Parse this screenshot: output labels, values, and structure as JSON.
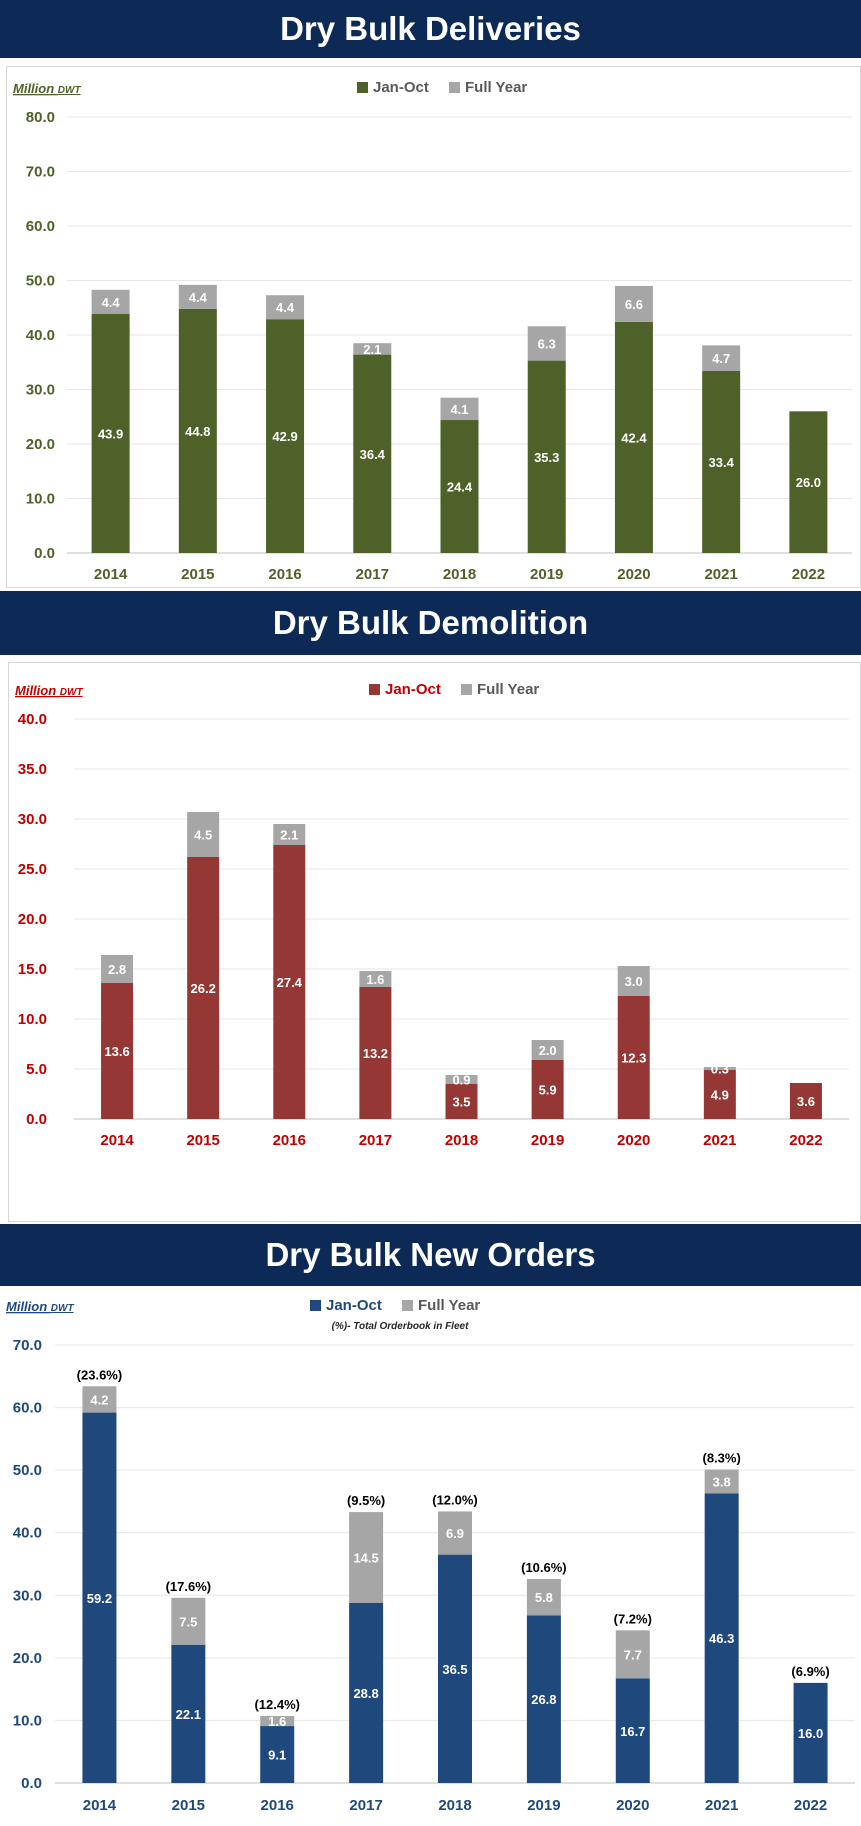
{
  "chart_data": [
    {
      "type": "bar",
      "stacked": true,
      "title": "Dry Bulk Deliveries",
      "unit_main": "Million",
      "unit_sub": "DWT",
      "legend_position": "top-center",
      "categories": [
        "2014",
        "2015",
        "2016",
        "2017",
        "2018",
        "2019",
        "2020",
        "2021",
        "2022"
      ],
      "series": [
        {
          "name": "Jan-Oct",
          "values": [
            43.9,
            44.8,
            42.9,
            36.4,
            24.4,
            35.3,
            42.4,
            33.4,
            26.0
          ]
        },
        {
          "name": "Full Year",
          "values": [
            4.4,
            4.4,
            4.4,
            2.1,
            4.1,
            6.3,
            6.6,
            4.7,
            null
          ]
        }
      ],
      "ylim": [
        0,
        80
      ],
      "yticks": [
        "0.0",
        "10.0",
        "20.0",
        "30.0",
        "40.0",
        "50.0",
        "60.0",
        "70.0",
        "80.0"
      ],
      "colors": {
        "primary": "#4e6128",
        "secondary": "#a6a6a6",
        "axis_text": "#4e6128"
      },
      "grid": true
    },
    {
      "type": "bar",
      "stacked": true,
      "title": "Dry Bulk Demolition",
      "unit_main": "Million",
      "unit_sub": "DWT",
      "legend_position": "top-center",
      "categories": [
        "2014",
        "2015",
        "2016",
        "2017",
        "2018",
        "2019",
        "2020",
        "2021",
        "2022"
      ],
      "series": [
        {
          "name": "Jan-Oct",
          "values": [
            13.6,
            26.2,
            27.4,
            13.2,
            3.5,
            5.9,
            12.3,
            4.9,
            3.6
          ]
        },
        {
          "name": "Full Year",
          "values": [
            2.8,
            4.5,
            2.1,
            1.6,
            0.9,
            2.0,
            3.0,
            0.3,
            null
          ]
        }
      ],
      "ylim": [
        0,
        40
      ],
      "yticks": [
        "0.0",
        "5.0",
        "10.0",
        "15.0",
        "20.0",
        "25.0",
        "30.0",
        "35.0",
        "40.0"
      ],
      "colors": {
        "primary": "#953735",
        "secondary": "#a6a6a6",
        "axis_text": "#c00000"
      },
      "grid": true
    },
    {
      "type": "bar",
      "stacked": true,
      "title": "Dry Bulk New Orders",
      "unit_main": "Million",
      "unit_sub": "DWT",
      "subtitle": "(%)- Total Orderbook in Fleet",
      "legend_position": "top-center",
      "categories": [
        "2014",
        "2015",
        "2016",
        "2017",
        "2018",
        "2019",
        "2020",
        "2021",
        "2022"
      ],
      "series": [
        {
          "name": "Jan-Oct",
          "values": [
            59.2,
            22.1,
            9.1,
            28.8,
            36.5,
            26.8,
            16.7,
            46.3,
            16.0
          ]
        },
        {
          "name": "Full Year",
          "values": [
            4.2,
            7.5,
            1.6,
            14.5,
            6.9,
            5.8,
            7.7,
            3.8,
            null
          ]
        }
      ],
      "annotations": [
        "(23.6%)",
        "(17.6%)",
        "(12.4%)",
        "(9.5%)",
        "(12.0%)",
        "(10.6%)",
        "(7.2%)",
        "(8.3%)",
        "(6.9%)"
      ],
      "ylim": [
        0,
        70
      ],
      "yticks": [
        "0.0",
        "10.0",
        "20.0",
        "30.0",
        "40.0",
        "50.0",
        "60.0",
        "70.0"
      ],
      "colors": {
        "primary": "#1f497d",
        "secondary": "#a6a6a6",
        "axis_text": "#1f497d"
      },
      "grid": true
    }
  ]
}
